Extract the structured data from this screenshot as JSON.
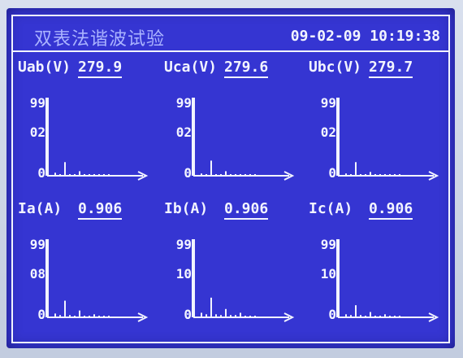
{
  "header": {
    "title": "双表法谐波试验",
    "datetime": "09-02-09 10:19:38"
  },
  "colors": {
    "screen_bg": "#3535d2",
    "text": "#f2f4ff",
    "title_text": "#aab3ff"
  },
  "panels": [
    {
      "label": "Uab(V)",
      "value": "279.9",
      "chart_data": {
        "type": "bar",
        "y_ticks": [
          "99",
          "02",
          "0"
        ],
        "values": [
          99,
          4,
          2,
          18,
          2,
          1,
          6,
          1,
          1,
          2,
          1,
          0.5,
          1
        ],
        "ylim": [
          0,
          99
        ]
      }
    },
    {
      "label": "Uca(V)",
      "value": "279.6",
      "chart_data": {
        "type": "bar",
        "y_ticks": [
          "99",
          "02",
          "0"
        ],
        "values": [
          99,
          3,
          2,
          20,
          2,
          1,
          6,
          1,
          1,
          2,
          1,
          0.5,
          1
        ],
        "ylim": [
          0,
          99
        ]
      }
    },
    {
      "label": "Ubc(V)",
      "value": "279.7",
      "chart_data": {
        "type": "bar",
        "y_ticks": [
          "99",
          "02",
          "0"
        ],
        "values": [
          99,
          3,
          2,
          18,
          2,
          1,
          5,
          1,
          1,
          2,
          1,
          0.5,
          1
        ],
        "ylim": [
          0,
          99
        ]
      }
    },
    {
      "label": "Ia(A)",
      "value": "0.906",
      "chart_data": {
        "type": "bar",
        "y_ticks": [
          "99",
          "08",
          "0"
        ],
        "values": [
          99,
          5,
          3,
          22,
          3,
          2,
          9,
          2,
          2,
          4,
          2,
          1,
          2
        ],
        "ylim": [
          0,
          99
        ]
      }
    },
    {
      "label": "Ib(A)",
      "value": "0.906",
      "chart_data": {
        "type": "bar",
        "y_ticks": [
          "99",
          "10",
          "0"
        ],
        "values": [
          99,
          6,
          4,
          26,
          4,
          3,
          11,
          3,
          3,
          6,
          2,
          2,
          2
        ],
        "ylim": [
          0,
          99
        ]
      }
    },
    {
      "label": "Ic(A)",
      "value": "0.906",
      "chart_data": {
        "type": "bar",
        "y_ticks": [
          "99",
          "10",
          "0"
        ],
        "values": [
          99,
          4,
          3,
          16,
          3,
          2,
          7,
          2,
          2,
          4,
          2,
          1,
          1
        ],
        "ylim": [
          0,
          99
        ]
      }
    }
  ]
}
